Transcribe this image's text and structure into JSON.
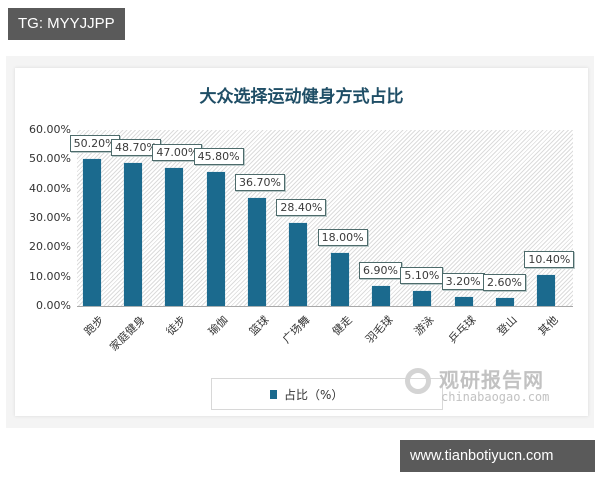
{
  "overlays": {
    "top_tag": "TG: MYYJJPP",
    "bottom_tag": "www.tianbotiyucn.com"
  },
  "watermark": {
    "icon": "chinabaogao-logo-icon",
    "cn": "观研报告网",
    "en": "chinabaogao.com"
  },
  "colors": {
    "bar": "#1b6a8e",
    "title": "#1f4e66",
    "tag_bg": "#5a5a5a"
  },
  "chart_data": {
    "type": "bar",
    "title": "大众选择运动健身方式占比",
    "xlabel": "",
    "ylabel": "",
    "ylim": [
      0,
      60
    ],
    "yticks": [
      "0.00%",
      "10.00%",
      "20.00%",
      "30.00%",
      "40.00%",
      "50.00%",
      "60.00%"
    ],
    "categories": [
      "跑步",
      "家庭健身",
      "徒步",
      "瑜伽",
      "篮球",
      "广场舞",
      "健走",
      "羽毛球",
      "游泳",
      "乒乓球",
      "登山",
      "其他"
    ],
    "values": [
      50.2,
      48.7,
      47.0,
      45.8,
      36.7,
      28.4,
      18.0,
      6.9,
      5.1,
      3.2,
      2.6,
      10.4
    ],
    "value_labels": [
      "50.20%",
      "48.70%",
      "47.00%",
      "45.80%",
      "36.70%",
      "28.40%",
      "18.00%",
      "6.90%",
      "5.10%",
      "3.20%",
      "2.60%",
      "10.40%"
    ],
    "series": [
      {
        "name": "占比（%）",
        "values": [
          50.2,
          48.7,
          47.0,
          45.8,
          36.7,
          28.4,
          18.0,
          6.9,
          5.1,
          3.2,
          2.6,
          10.4
        ]
      }
    ],
    "legend": {
      "position": "bottom",
      "entries": [
        "占比（%）"
      ]
    },
    "grid": false,
    "background": "diagonal-hatch"
  }
}
